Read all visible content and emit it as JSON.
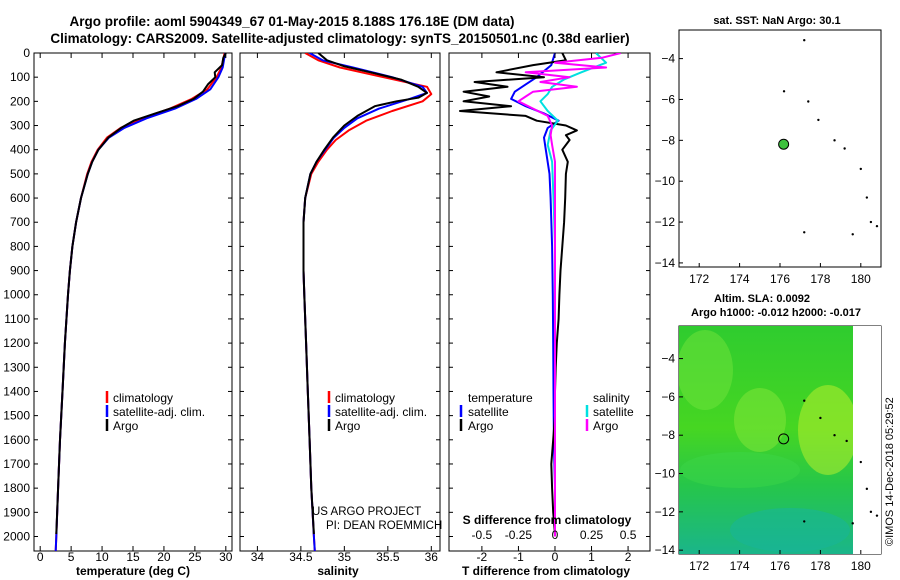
{
  "title": {
    "line1": "Argo profile: aoml 5904349_67 01-May-2015 8.188S 176.18E (DM data)",
    "line2": "Climatology: CARS2009. Satellite-adjusted climatology: synTS_20150501.nc (0.38d earlier)"
  },
  "colors": {
    "climatology": "#ff0000",
    "satellite_adj": "#0000ff",
    "argo": "#000000",
    "satellite_s": "#00e0e0",
    "argo_s": "#ff00ff",
    "marker_fill": "#3ec23e"
  },
  "chart_data": [
    {
      "id": "temperature",
      "type": "line",
      "xlabel": "temperature (deg C)",
      "ylabel": "depth",
      "xlim": [
        -1,
        31
      ],
      "ylim": [
        2060,
        0
      ],
      "xticks": [
        0,
        5,
        10,
        15,
        20,
        25,
        30
      ],
      "yticks": [
        0,
        100,
        200,
        300,
        400,
        500,
        600,
        700,
        800,
        900,
        1000,
        1100,
        1200,
        1300,
        1400,
        1500,
        1600,
        1700,
        1800,
        1900,
        2000
      ],
      "legend": {
        "position": "lower-center",
        "entries": [
          "climatology",
          "satellite-adj. clim.",
          "Argo"
        ]
      },
      "series": [
        {
          "name": "climatology",
          "color": "#ff0000",
          "depth": [
            0,
            60,
            100,
            150,
            190,
            230,
            270,
            310,
            350,
            400,
            450,
            500,
            600,
            700,
            800,
            900,
            1000,
            1200,
            1400,
            1600,
            1800,
            2000,
            2060
          ],
          "values": [
            29.8,
            29.3,
            28.5,
            27.0,
            24.5,
            21.0,
            16.5,
            13.0,
            10.8,
            9.3,
            8.3,
            7.6,
            6.6,
            5.8,
            5.2,
            4.8,
            4.5,
            4.0,
            3.6,
            3.2,
            2.9,
            2.6,
            2.5
          ]
        },
        {
          "name": "satellite-adj. clim.",
          "color": "#0000ff",
          "depth": [
            0,
            60,
            100,
            150,
            190,
            230,
            270,
            310,
            350,
            400,
            450,
            500,
            600,
            700,
            800,
            900,
            1000,
            1200,
            1400,
            1600,
            1800,
            2000,
            2060
          ],
          "values": [
            29.9,
            29.5,
            28.8,
            27.5,
            25.2,
            21.8,
            17.2,
            13.6,
            11.1,
            9.4,
            8.4,
            7.7,
            6.6,
            5.8,
            5.2,
            4.8,
            4.5,
            4.0,
            3.6,
            3.2,
            2.9,
            2.6,
            2.5
          ]
        },
        {
          "name": "Argo",
          "color": "#000000",
          "depth": [
            0,
            20,
            50,
            80,
            100,
            130,
            160,
            190,
            220,
            250,
            280,
            310,
            350,
            400,
            450,
            500,
            600,
            700,
            800,
            900,
            1000,
            1200,
            1400,
            1600,
            1800,
            1990
          ],
          "values": [
            30.0,
            29.6,
            29.4,
            28.2,
            28.3,
            27.1,
            26.3,
            24.8,
            22.2,
            18.6,
            15.1,
            13.1,
            11.0,
            9.4,
            8.4,
            7.7,
            6.6,
            5.8,
            5.2,
            4.8,
            4.5,
            4.0,
            3.6,
            3.2,
            2.9,
            2.6
          ]
        }
      ]
    },
    {
      "id": "salinity",
      "type": "line",
      "xlabel": "salinity",
      "xlim": [
        33.8,
        36.1
      ],
      "ylim": [
        2060,
        0
      ],
      "xticks": [
        34,
        34.5,
        35,
        35.5,
        36
      ],
      "legend": {
        "position": "lower-center",
        "entries": [
          "climatology",
          "satellite-adj. clim.",
          "Argo"
        ]
      },
      "annotation": [
        "US ARGO PROJECT",
        "PI: DEAN ROEMMICH"
      ],
      "series": [
        {
          "name": "climatology",
          "color": "#ff0000",
          "depth": [
            0,
            30,
            60,
            100,
            140,
            170,
            200,
            240,
            280,
            320,
            360,
            400,
            450,
            500,
            600,
            700,
            800,
            900,
            1000,
            1200,
            1400,
            1600,
            1800,
            2000,
            2060
          ],
          "values": [
            34.55,
            34.7,
            34.95,
            35.45,
            35.95,
            36.0,
            35.9,
            35.55,
            35.25,
            35.05,
            34.9,
            34.8,
            34.7,
            34.62,
            34.55,
            34.53,
            34.53,
            34.53,
            34.54,
            34.56,
            34.58,
            34.6,
            34.62,
            34.65,
            34.66
          ]
        },
        {
          "name": "satellite-adj. clim.",
          "color": "#0000ff",
          "depth": [
            0,
            30,
            60,
            100,
            140,
            165,
            190,
            230,
            270,
            310,
            350,
            400,
            450,
            500,
            600,
            700,
            800,
            900,
            1000,
            1200,
            1400,
            1600,
            1800,
            2000,
            2060
          ],
          "values": [
            34.6,
            34.75,
            35.1,
            35.55,
            35.9,
            35.95,
            35.75,
            35.4,
            35.15,
            35.0,
            34.88,
            34.78,
            34.68,
            34.61,
            34.55,
            34.53,
            34.53,
            34.53,
            34.54,
            34.56,
            34.58,
            34.6,
            34.62,
            34.65,
            34.66
          ]
        },
        {
          "name": "Argo",
          "color": "#000000",
          "depth": [
            0,
            30,
            55,
            80,
            110,
            140,
            165,
            185,
            200,
            220,
            260,
            300,
            350,
            400,
            450,
            500,
            600,
            700,
            800,
            900,
            1000,
            1200,
            1400,
            1600,
            1800,
            1990
          ],
          "values": [
            34.7,
            34.8,
            35.0,
            35.3,
            35.65,
            35.85,
            35.95,
            35.85,
            35.6,
            35.35,
            35.15,
            35.0,
            34.87,
            34.77,
            34.68,
            34.61,
            34.55,
            34.53,
            34.53,
            34.53,
            34.54,
            34.56,
            34.58,
            34.6,
            34.62,
            34.65
          ]
        }
      ]
    },
    {
      "id": "difference",
      "type": "line",
      "xlabel": "T difference from climatology",
      "secondary_xlabel": "S difference from climatology",
      "xlim": [
        -2.9,
        2.6
      ],
      "ylim": [
        2060,
        0
      ],
      "xticks": [
        -2,
        -1,
        0,
        1,
        2
      ],
      "secondary_xticks": [
        "-0.5",
        "-0.25",
        "0",
        "0.25",
        "0.5"
      ],
      "secondary_xtick_values": [
        -0.5,
        -0.25,
        0,
        0.25,
        0.5
      ],
      "secondary_scale": 4,
      "legend": {
        "temperature_title": "temperature",
        "salinity_title": "salinity",
        "temperature_entries": [
          "satellite",
          "Argo"
        ],
        "salinity_entries": [
          "satellite",
          "Argo"
        ]
      },
      "series": [
        {
          "name": "T satellite",
          "quantity": "temperature",
          "color": "#0000ff",
          "depth": [
            0,
            50,
            100,
            130,
            160,
            190,
            220,
            250,
            280,
            310,
            350,
            400,
            500,
            600,
            800,
            1000,
            1200,
            1400,
            1600,
            1800,
            2000
          ],
          "values": [
            0.0,
            -0.1,
            -0.5,
            -0.8,
            -1.1,
            -1.2,
            -0.8,
            -0.3,
            0.1,
            -0.2,
            -0.3,
            -0.25,
            -0.15,
            -0.12,
            -0.08,
            -0.06,
            -0.05,
            -0.04,
            -0.03,
            0.0,
            0.0
          ]
        },
        {
          "name": "T Argo",
          "quantity": "temperature",
          "color": "#000000",
          "depth": [
            0,
            30,
            50,
            80,
            100,
            120,
            140,
            160,
            180,
            200,
            220,
            240,
            260,
            280,
            300,
            320,
            340,
            360,
            400,
            450,
            500,
            600,
            700,
            800,
            900,
            1000,
            1100,
            1200,
            1300,
            1400,
            1500,
            1600,
            1700,
            1800,
            1900,
            1990
          ],
          "values": [
            0.2,
            0.3,
            -0.6,
            -1.6,
            -0.3,
            -2.2,
            -1.3,
            -2.5,
            -1.8,
            -2.5,
            -1.2,
            -2.6,
            -0.8,
            -0.5,
            0.3,
            0.6,
            0.3,
            0.4,
            0.2,
            0.35,
            0.3,
            0.28,
            0.25,
            0.2,
            0.15,
            0.12,
            0.1,
            0.05,
            0.02,
            0.0,
            0.0,
            -0.05,
            -0.1,
            -0.08,
            -0.05,
            0.0
          ]
        },
        {
          "name": "S satellite",
          "quantity": "salinity",
          "color": "#00e0e0",
          "depth": [
            0,
            40,
            80,
            110,
            140,
            170,
            200,
            240,
            280,
            320,
            380,
            450,
            600,
            800,
            1000,
            1200,
            1400,
            1600,
            1800,
            2000
          ],
          "values": [
            0.28,
            0.35,
            0.18,
            0.06,
            -0.02,
            -0.05,
            -0.1,
            -0.05,
            0.02,
            -0.03,
            -0.05,
            -0.02,
            -0.01,
            0.0,
            0.0,
            0.0,
            0.0,
            0.0,
            0.0,
            0.0
          ]
        },
        {
          "name": "S Argo",
          "quantity": "salinity",
          "color": "#ff00ff",
          "depth": [
            0,
            20,
            40,
            60,
            80,
            100,
            120,
            140,
            160,
            180,
            200,
            230,
            260,
            300,
            340,
            380,
            450,
            600,
            800,
            1000,
            1200,
            1400,
            1600,
            1800,
            2000
          ],
          "values": [
            0.45,
            0.32,
            0.0,
            0.35,
            -0.2,
            0.1,
            -0.1,
            0.15,
            -0.15,
            -0.2,
            -0.25,
            -0.15,
            -0.05,
            -0.02,
            -0.03,
            -0.02,
            0.0,
            0.0,
            0.0,
            0.0,
            0.0,
            0.0,
            0.0,
            0.0,
            0.0
          ]
        }
      ]
    },
    {
      "id": "sst_map",
      "type": "scatter",
      "title": "sat. SST: NaN Argo: 30.1",
      "xlim": [
        171.0,
        181.0
      ],
      "ylim": [
        -14.2,
        -2.6
      ],
      "xticks": [
        172,
        174,
        176,
        178,
        180
      ],
      "yticks": [
        -4,
        -6,
        -8,
        -10,
        -12,
        -14
      ],
      "profile_location": [
        176.18,
        -8.19
      ],
      "points": [
        {
          "lon": 177.2,
          "lat": -3.1
        },
        {
          "lon": 176.2,
          "lat": -5.6
        },
        {
          "lon": 177.4,
          "lat": -6.1
        },
        {
          "lon": 177.9,
          "lat": -7.0
        },
        {
          "lon": 178.7,
          "lat": -8.0
        },
        {
          "lon": 179.2,
          "lat": -8.4
        },
        {
          "lon": 180.0,
          "lat": -9.4
        },
        {
          "lon": 180.3,
          "lat": -10.8
        },
        {
          "lon": 180.5,
          "lat": -12.0
        },
        {
          "lon": 180.8,
          "lat": -12.2
        },
        {
          "lon": 179.6,
          "lat": -12.6
        },
        {
          "lon": 177.2,
          "lat": -12.5
        }
      ]
    },
    {
      "id": "sla_map",
      "type": "heatmap",
      "title_line1": "Altim. SLA: 0.0092",
      "title_line2": "Argo h1000: -0.012 h2000: -0.017",
      "xlim": [
        171.0,
        181.0
      ],
      "ylim": [
        -14.2,
        -2.3
      ],
      "xticks": [
        172,
        174,
        176,
        178,
        180
      ],
      "yticks": [
        -4,
        -6,
        -8,
        -10,
        -12,
        -14
      ],
      "profile_location": [
        176.18,
        -8.19
      ],
      "points": [
        {
          "lon": 177.2,
          "lat": -6.2
        },
        {
          "lon": 178.0,
          "lat": -7.1
        },
        {
          "lon": 178.7,
          "lat": -8.0
        },
        {
          "lon": 179.3,
          "lat": -8.3
        },
        {
          "lon": 180.0,
          "lat": -9.4
        },
        {
          "lon": 180.3,
          "lat": -10.8
        },
        {
          "lon": 180.5,
          "lat": -12.0
        },
        {
          "lon": 180.8,
          "lat": -12.2
        },
        {
          "lon": 179.6,
          "lat": -12.6
        },
        {
          "lon": 177.2,
          "lat": -12.5
        }
      ]
    }
  ],
  "credit": "©IMOS 14-Dec-2018 05:29:52"
}
